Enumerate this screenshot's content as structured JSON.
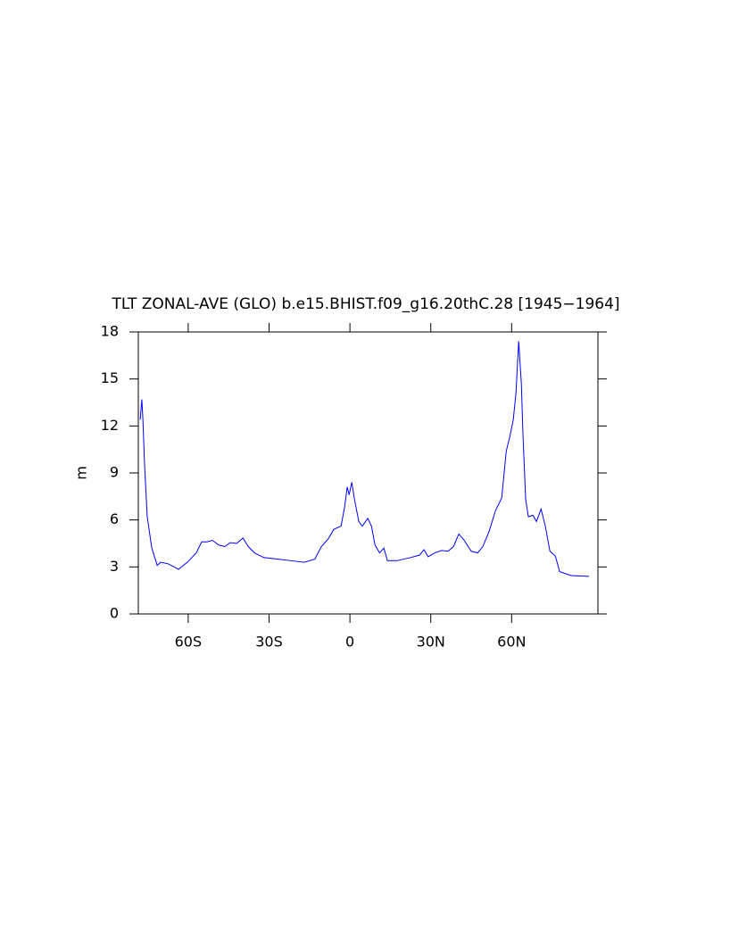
{
  "chart_data": {
    "type": "line",
    "title": "TLT ZONAL-AVE (GLO) b.e15.BHIST.f09_g16.20thC.28 [1945−1964]",
    "y_label": "m",
    "x": [
      -77.8,
      -77.2,
      -76.8,
      -76.2,
      -75.2,
      -73.5,
      -71.5,
      -70.2,
      -67.5,
      -65.2,
      -63.6,
      -60.3,
      -57,
      -55,
      -53,
      -51,
      -48.7,
      -46.4,
      -44.4,
      -42,
      -39.7,
      -37.7,
      -35.4,
      -32,
      -27,
      -22,
      -17,
      -13,
      -10.6,
      -8,
      -6,
      -3.3,
      -2,
      -1,
      -0.3,
      0.7,
      1.7,
      3.3,
      4.6,
      6.6,
      8,
      9.3,
      11,
      12.6,
      13.9,
      17.5,
      22.5,
      25.8,
      27.5,
      29,
      31.5,
      34,
      36.4,
      38.4,
      40.4,
      42.4,
      45,
      47.4,
      49.3,
      51.7,
      54,
      56.3,
      58,
      59.3,
      60.6,
      61.6,
      62.6,
      63.6,
      64.2,
      65.2,
      66.2,
      67.9,
      69.2,
      70.9,
      72.5,
      74.2,
      76.2,
      77.8,
      82,
      88.7
    ],
    "series": [
      {
        "name": "TLT",
        "color": "#0000ff",
        "values": [
          12.4,
          13.7,
          12.4,
          9.6,
          6.2,
          4.2,
          3.1,
          3.3,
          3.2,
          3.0,
          2.85,
          3.3,
          3.9,
          4.6,
          4.6,
          4.7,
          4.4,
          4.3,
          4.55,
          4.5,
          4.85,
          4.3,
          3.9,
          3.6,
          3.5,
          3.4,
          3.3,
          3.5,
          4.3,
          4.8,
          5.4,
          5.6,
          6.8,
          8.1,
          7.6,
          8.4,
          7.3,
          5.9,
          5.6,
          6.1,
          5.6,
          4.4,
          3.9,
          4.2,
          3.4,
          3.4,
          3.6,
          3.75,
          4.1,
          3.65,
          3.9,
          4.05,
          4.0,
          4.3,
          5.1,
          4.7,
          4.0,
          3.9,
          4.3,
          5.3,
          6.6,
          7.4,
          10.4,
          11.3,
          12.4,
          14.1,
          17.4,
          14.7,
          11.4,
          7.3,
          6.2,
          6.3,
          5.9,
          6.7,
          5.6,
          4.0,
          3.7,
          2.7,
          2.45,
          2.4
        ]
      }
    ],
    "xlim": [
      -78.5,
      92
    ],
    "xticks": [
      {
        "value": -60,
        "label": "60S"
      },
      {
        "value": -30,
        "label": "30S"
      },
      0,
      {
        "value": 30,
        "label": "30N"
      },
      {
        "value": 60,
        "label": "60N"
      }
    ],
    "ylim": [
      0,
      18
    ],
    "yticks": [
      0,
      3,
      6,
      9,
      12,
      15,
      18
    ],
    "grid": false
  }
}
